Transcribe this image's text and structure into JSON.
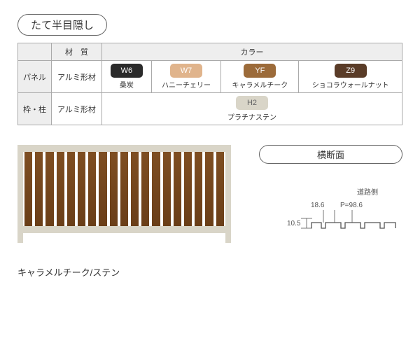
{
  "title": "たて半目隠し",
  "table": {
    "headers": {
      "material": "材　質",
      "color": "カラー",
      "panel": "パネル",
      "frame": "枠・柱"
    },
    "materialValue": "アルミ形材",
    "panelColors": [
      {
        "code": "W6",
        "name": "桑炭",
        "bg": "#2b2b2b",
        "fg": "#ffffff"
      },
      {
        "code": "W7",
        "name": "ハニーチェリー",
        "bg": "#e0b48c",
        "fg": "#ffffff"
      },
      {
        "code": "YF",
        "name": "キャラメルチーク",
        "bg": "#9c6b3a",
        "fg": "#ffffff"
      },
      {
        "code": "Z9",
        "name": "ショコラウォールナット",
        "bg": "#5a3c28",
        "fg": "#ffffff"
      }
    ],
    "frameColor": {
      "code": "H2",
      "name": "プラチナステン",
      "bg": "#d9d5c8",
      "fg": "#666666"
    }
  },
  "fence": {
    "slatCount": 19,
    "slatColor": "#7e4e22",
    "frameColor": "#d9d5c8",
    "caption": "キャラメルチーク/ステン"
  },
  "cross": {
    "title": "横断面",
    "roadSide": "道路側",
    "dimA": "18.6",
    "dimP": "P=98.6",
    "dimH": "10.5",
    "color": "#555555"
  }
}
